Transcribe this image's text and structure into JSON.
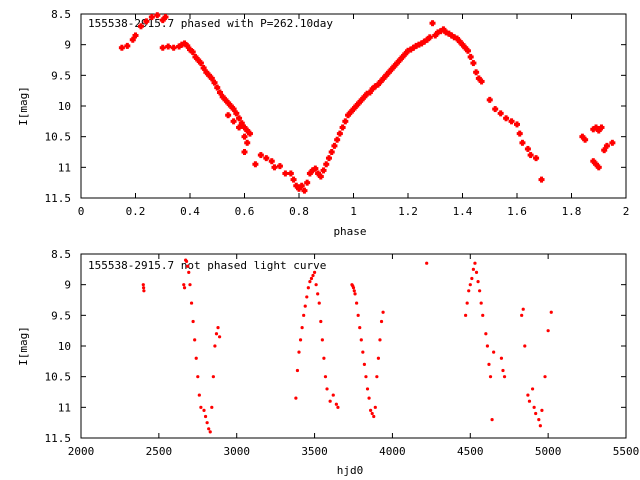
{
  "chart_data": [
    {
      "type": "scatter",
      "title": "155538-2915.7 phased with P=262.10day",
      "xlabel": "phase",
      "ylabel": "I[mag]",
      "xlim": [
        0,
        2
      ],
      "ylim": [
        8.5,
        11.5
      ],
      "y_inverted": true,
      "x_ticks": [
        "0",
        "0.2",
        "0.4",
        "0.6",
        "0.8",
        "1",
        "1.2",
        "1.4",
        "1.6",
        "1.8",
        "2"
      ],
      "y_ticks": [
        "8.5",
        "9",
        "9.5",
        "10",
        "10.5",
        "11",
        "11.5"
      ],
      "grid": false,
      "series": [
        {
          "color": "#ff0000",
          "marker": "plus",
          "points": [
            [
              0.15,
              9.05
            ],
            [
              0.17,
              9.02
            ],
            [
              0.19,
              8.92
            ],
            [
              0.2,
              8.85
            ],
            [
              0.22,
              8.7
            ],
            [
              0.24,
              8.62
            ],
            [
              0.26,
              8.55
            ],
            [
              0.28,
              8.52
            ],
            [
              0.3,
              8.6
            ],
            [
              0.31,
              8.55
            ],
            [
              0.3,
              9.05
            ],
            [
              0.32,
              9.03
            ],
            [
              0.34,
              9.05
            ],
            [
              0.36,
              9.03
            ],
            [
              0.37,
              9.0
            ],
            [
              0.38,
              8.98
            ],
            [
              0.39,
              9.02
            ],
            [
              0.4,
              9.08
            ],
            [
              0.41,
              9.12
            ],
            [
              0.42,
              9.2
            ],
            [
              0.43,
              9.25
            ],
            [
              0.44,
              9.3
            ],
            [
              0.45,
              9.38
            ],
            [
              0.46,
              9.45
            ],
            [
              0.47,
              9.5
            ],
            [
              0.48,
              9.55
            ],
            [
              0.49,
              9.62
            ],
            [
              0.5,
              9.7
            ],
            [
              0.51,
              9.78
            ],
            [
              0.52,
              9.85
            ],
            [
              0.53,
              9.9
            ],
            [
              0.54,
              9.95
            ],
            [
              0.55,
              10.0
            ],
            [
              0.56,
              10.05
            ],
            [
              0.57,
              10.12
            ],
            [
              0.58,
              10.2
            ],
            [
              0.59,
              10.28
            ],
            [
              0.6,
              10.35
            ],
            [
              0.61,
              10.4
            ],
            [
              0.62,
              10.45
            ],
            [
              0.54,
              10.15
            ],
            [
              0.56,
              10.25
            ],
            [
              0.58,
              10.35
            ],
            [
              0.6,
              10.5
            ],
            [
              0.61,
              10.6
            ],
            [
              0.6,
              10.75
            ],
            [
              0.64,
              10.95
            ],
            [
              0.66,
              10.8
            ],
            [
              0.68,
              10.85
            ],
            [
              0.7,
              10.9
            ],
            [
              0.71,
              11.0
            ],
            [
              0.73,
              10.98
            ],
            [
              0.75,
              11.1
            ],
            [
              0.77,
              11.1
            ],
            [
              0.78,
              11.2
            ],
            [
              0.79,
              11.3
            ],
            [
              0.8,
              11.35
            ],
            [
              0.81,
              11.3
            ],
            [
              0.82,
              11.38
            ],
            [
              0.83,
              11.25
            ],
            [
              0.84,
              11.1
            ],
            [
              0.85,
              11.05
            ],
            [
              0.86,
              11.02
            ],
            [
              0.87,
              11.1
            ],
            [
              0.88,
              11.15
            ],
            [
              0.89,
              11.05
            ],
            [
              0.9,
              10.95
            ],
            [
              0.91,
              10.85
            ],
            [
              0.92,
              10.75
            ],
            [
              0.93,
              10.65
            ],
            [
              0.94,
              10.55
            ],
            [
              0.95,
              10.45
            ],
            [
              0.96,
              10.35
            ],
            [
              0.97,
              10.25
            ],
            [
              0.98,
              10.15
            ],
            [
              0.99,
              10.1
            ],
            [
              1.0,
              10.05
            ],
            [
              1.01,
              10.0
            ],
            [
              1.02,
              9.95
            ],
            [
              1.03,
              9.9
            ],
            [
              1.04,
              9.85
            ],
            [
              1.05,
              9.8
            ],
            [
              1.06,
              9.78
            ],
            [
              1.07,
              9.72
            ],
            [
              1.08,
              9.68
            ],
            [
              1.09,
              9.65
            ],
            [
              1.1,
              9.6
            ],
            [
              1.11,
              9.55
            ],
            [
              1.12,
              9.5
            ],
            [
              1.13,
              9.45
            ],
            [
              1.14,
              9.4
            ],
            [
              1.15,
              9.35
            ],
            [
              1.16,
              9.3
            ],
            [
              1.17,
              9.25
            ],
            [
              1.18,
              9.2
            ],
            [
              1.19,
              9.15
            ],
            [
              1.2,
              9.1
            ],
            [
              1.21,
              9.08
            ],
            [
              1.22,
              9.05
            ],
            [
              1.23,
              9.02
            ],
            [
              1.24,
              9.0
            ],
            [
              1.25,
              8.98
            ],
            [
              1.26,
              8.95
            ],
            [
              1.27,
              8.92
            ],
            [
              1.28,
              8.88
            ],
            [
              1.29,
              8.65
            ],
            [
              1.3,
              8.85
            ],
            [
              1.31,
              8.8
            ],
            [
              1.32,
              8.78
            ],
            [
              1.33,
              8.75
            ],
            [
              1.34,
              8.8
            ],
            [
              1.35,
              8.82
            ],
            [
              1.36,
              8.85
            ],
            [
              1.37,
              8.88
            ],
            [
              1.38,
              8.9
            ],
            [
              1.39,
              8.95
            ],
            [
              1.4,
              9.0
            ],
            [
              1.41,
              9.05
            ],
            [
              1.42,
              9.1
            ],
            [
              1.43,
              9.2
            ],
            [
              1.44,
              9.3
            ],
            [
              1.45,
              9.45
            ],
            [
              1.46,
              9.55
            ],
            [
              1.47,
              9.6
            ],
            [
              1.5,
              9.9
            ],
            [
              1.52,
              10.05
            ],
            [
              1.54,
              10.12
            ],
            [
              1.56,
              10.2
            ],
            [
              1.58,
              10.25
            ],
            [
              1.6,
              10.3
            ],
            [
              1.61,
              10.45
            ],
            [
              1.62,
              10.6
            ],
            [
              1.64,
              10.7
            ],
            [
              1.65,
              10.8
            ],
            [
              1.67,
              10.85
            ],
            [
              1.69,
              11.2
            ],
            [
              1.84,
              10.5
            ],
            [
              1.85,
              10.55
            ],
            [
              1.88,
              10.38
            ],
            [
              1.89,
              10.35
            ],
            [
              1.9,
              10.4
            ],
            [
              1.91,
              10.35
            ],
            [
              1.88,
              10.9
            ],
            [
              1.89,
              10.95
            ],
            [
              1.9,
              11.0
            ],
            [
              1.92,
              10.72
            ],
            [
              1.93,
              10.65
            ],
            [
              1.95,
              10.6
            ]
          ]
        }
      ]
    },
    {
      "type": "scatter",
      "title": "155538-2915.7 not phased light curve",
      "xlabel": "hjd0",
      "ylabel": "I[mag]",
      "xlim": [
        2000,
        5500
      ],
      "ylim": [
        8.5,
        11.5
      ],
      "y_inverted": true,
      "x_ticks": [
        "2000",
        "2500",
        "3000",
        "3500",
        "4000",
        "4500",
        "5000",
        "5500"
      ],
      "y_ticks": [
        "8.5",
        "9",
        "9.5",
        "10",
        "10.5",
        "11",
        "11.5"
      ],
      "grid": false,
      "series": [
        {
          "color": "#ff0000",
          "marker": "dot",
          "points": [
            [
              2400,
              9.0
            ],
            [
              2402,
              9.05
            ],
            [
              2404,
              9.1
            ],
            [
              2660,
              9.0
            ],
            [
              2665,
              9.05
            ],
            [
              2672,
              8.6
            ],
            [
              2678,
              8.62
            ],
            [
              2685,
              8.7
            ],
            [
              2692,
              8.8
            ],
            [
              2700,
              9.0
            ],
            [
              2710,
              9.3
            ],
            [
              2720,
              9.6
            ],
            [
              2730,
              9.9
            ],
            [
              2740,
              10.2
            ],
            [
              2750,
              10.5
            ],
            [
              2760,
              10.8
            ],
            [
              2770,
              11.0
            ],
            [
              2790,
              11.05
            ],
            [
              2800,
              11.15
            ],
            [
              2810,
              11.25
            ],
            [
              2820,
              11.35
            ],
            [
              2830,
              11.4
            ],
            [
              2840,
              11.0
            ],
            [
              2850,
              10.5
            ],
            [
              2860,
              10.0
            ],
            [
              2870,
              9.8
            ],
            [
              2880,
              9.7
            ],
            [
              2890,
              9.85
            ],
            [
              3380,
              10.85
            ],
            [
              3390,
              10.4
            ],
            [
              3400,
              10.1
            ],
            [
              3410,
              9.9
            ],
            [
              3420,
              9.7
            ],
            [
              3430,
              9.5
            ],
            [
              3440,
              9.35
            ],
            [
              3450,
              9.2
            ],
            [
              3460,
              9.05
            ],
            [
              3470,
              8.95
            ],
            [
              3480,
              8.9
            ],
            [
              3490,
              8.85
            ],
            [
              3500,
              8.8
            ],
            [
              3510,
              9.0
            ],
            [
              3520,
              9.15
            ],
            [
              3530,
              9.3
            ],
            [
              3540,
              9.6
            ],
            [
              3550,
              9.9
            ],
            [
              3560,
              10.2
            ],
            [
              3570,
              10.5
            ],
            [
              3580,
              10.7
            ],
            [
              3600,
              10.9
            ],
            [
              3620,
              10.8
            ],
            [
              3640,
              10.95
            ],
            [
              3650,
              11.0
            ],
            [
              3740,
              9.0
            ],
            [
              3745,
              9.02
            ],
            [
              3750,
              9.05
            ],
            [
              3755,
              9.1
            ],
            [
              3760,
              9.15
            ],
            [
              3770,
              9.3
            ],
            [
              3780,
              9.5
            ],
            [
              3790,
              9.7
            ],
            [
              3800,
              9.9
            ],
            [
              3810,
              10.1
            ],
            [
              3820,
              10.3
            ],
            [
              3830,
              10.5
            ],
            [
              3840,
              10.7
            ],
            [
              3850,
              10.85
            ],
            [
              3860,
              11.05
            ],
            [
              3870,
              11.1
            ],
            [
              3880,
              11.15
            ],
            [
              3890,
              11.0
            ],
            [
              3900,
              10.5
            ],
            [
              3910,
              10.2
            ],
            [
              3920,
              9.9
            ],
            [
              3930,
              9.6
            ],
            [
              3940,
              9.45
            ],
            [
              4220,
              8.65
            ],
            [
              4470,
              9.5
            ],
            [
              4480,
              9.3
            ],
            [
              4490,
              9.1
            ],
            [
              4500,
              9.0
            ],
            [
              4510,
              8.9
            ],
            [
              4520,
              8.75
            ],
            [
              4530,
              8.65
            ],
            [
              4540,
              8.8
            ],
            [
              4550,
              8.95
            ],
            [
              4560,
              9.1
            ],
            [
              4570,
              9.3
            ],
            [
              4580,
              9.5
            ],
            [
              4600,
              9.8
            ],
            [
              4610,
              10.0
            ],
            [
              4620,
              10.3
            ],
            [
              4630,
              10.5
            ],
            [
              4640,
              11.2
            ],
            [
              4650,
              10.1
            ],
            [
              4700,
              10.2
            ],
            [
              4710,
              10.4
            ],
            [
              4720,
              10.5
            ],
            [
              4830,
              9.5
            ],
            [
              4840,
              9.4
            ],
            [
              4850,
              10.0
            ],
            [
              4870,
              10.8
            ],
            [
              4880,
              10.9
            ],
            [
              4900,
              10.7
            ],
            [
              4910,
              11.0
            ],
            [
              4920,
              11.1
            ],
            [
              4940,
              11.2
            ],
            [
              4950,
              11.3
            ],
            [
              4960,
              11.05
            ],
            [
              4980,
              10.5
            ],
            [
              5000,
              9.75
            ],
            [
              5020,
              9.45
            ]
          ]
        }
      ]
    }
  ]
}
